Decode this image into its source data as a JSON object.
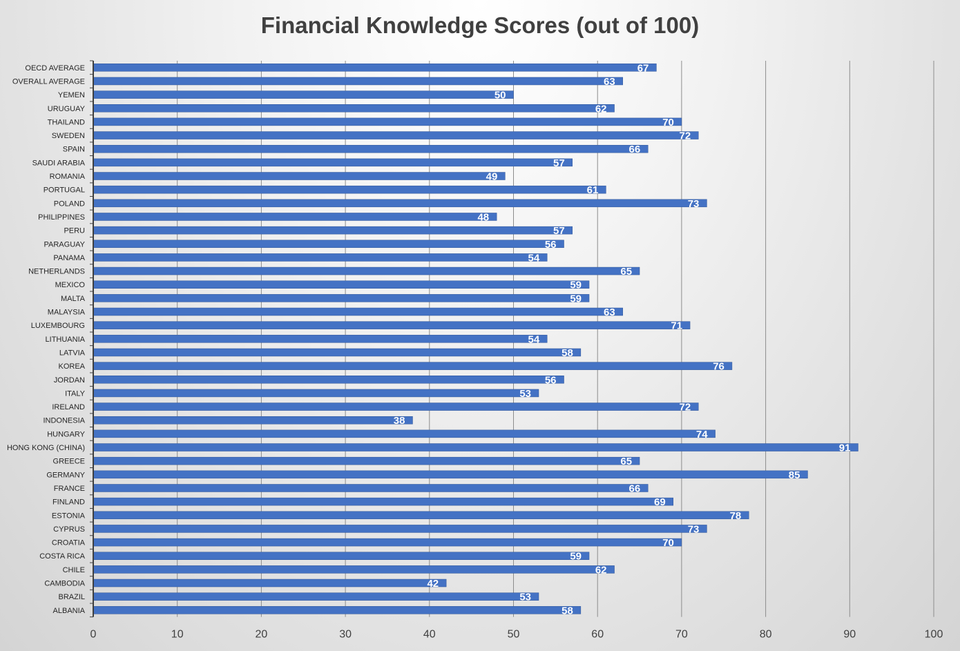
{
  "chart_data": {
    "type": "bar",
    "orientation": "horizontal",
    "title": "Financial Knowledge Scores (out of 100)",
    "xlabel": "",
    "ylabel": "",
    "xlim": [
      0,
      100
    ],
    "x_ticks": [
      0,
      10,
      20,
      30,
      40,
      50,
      60,
      70,
      80,
      90,
      100
    ],
    "grid": "vertical",
    "legend": "none",
    "bar_color": "#4472C4",
    "label_color": "#ffffff",
    "categories": [
      "OECD AVERAGE",
      "OVERALL AVERAGE",
      "YEMEN",
      "URUGUAY",
      "THAILAND",
      "SWEDEN",
      "SPAIN",
      "SAUDI ARABIA",
      "ROMANIA",
      "PORTUGAL",
      "POLAND",
      "PHILIPPINES",
      "PERU",
      "PARAGUAY",
      "PANAMA",
      "NETHERLANDS",
      "MEXICO",
      "MALTA",
      "MALAYSIA",
      "LUXEMBOURG",
      "LITHUANIA",
      "LATVIA",
      "KOREA",
      "JORDAN",
      "ITALY",
      "IRELAND",
      "INDONESIA",
      "HUNGARY",
      "HONG KONG (CHINA)",
      "GREECE",
      "GERMANY",
      "FRANCE",
      "FINLAND",
      "ESTONIA",
      "CYPRUS",
      "CROATIA",
      "COSTA RICA",
      "CHILE",
      "CAMBODIA",
      "BRAZIL",
      "ALBANIA"
    ],
    "values": [
      67,
      63,
      50,
      62,
      70,
      72,
      66,
      57,
      49,
      61,
      73,
      48,
      57,
      56,
      54,
      65,
      59,
      59,
      63,
      71,
      54,
      58,
      76,
      56,
      53,
      72,
      38,
      74,
      91,
      65,
      85,
      66,
      69,
      78,
      73,
      70,
      59,
      62,
      42,
      53,
      58
    ]
  }
}
